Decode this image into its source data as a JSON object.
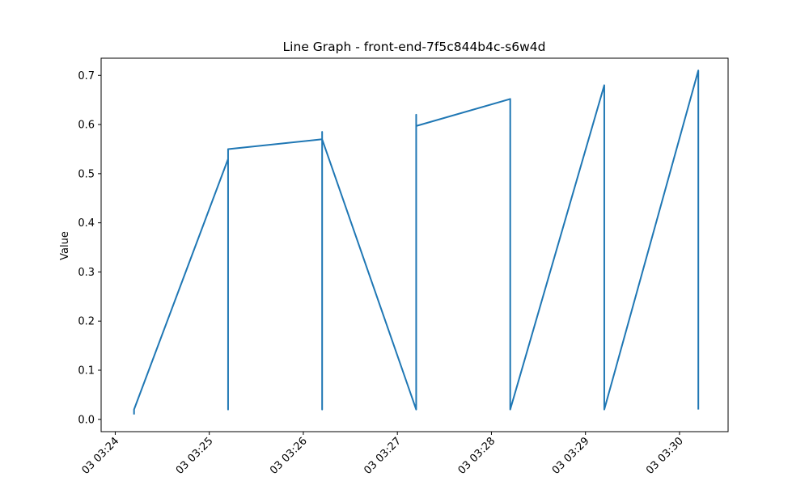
{
  "chart_data": {
    "type": "line",
    "title": "Line Graph - front-end-7f5c844b4c-s6w4d",
    "xlabel": "",
    "ylabel": "Value",
    "x_ticks": [
      "03 03:24",
      "03 03:25",
      "03 03:26",
      "03 03:27",
      "03 03:28",
      "03 03:29",
      "03 03:30"
    ],
    "y_ticks": [
      "0.0",
      "0.1",
      "0.2",
      "0.3",
      "0.4",
      "0.5",
      "0.6",
      "0.7"
    ],
    "ylim": [
      -0.025,
      0.735
    ],
    "xlim": [
      "03 03:23:51",
      "03 03:30:31"
    ],
    "grid": false,
    "colors": {
      "line": "#1f77b4",
      "axis": "#000000",
      "background": "#ffffff"
    },
    "series": [
      {
        "x": [
          "03 03:24:12",
          "03 03:24:12",
          "03 03:25:12",
          "03 03:25:12",
          "03 03:25:12",
          "03 03:25:12",
          "03 03:26:12",
          "03 03:26:12",
          "03 03:26:12",
          "03 03:26:12",
          "03 03:27:12",
          "03 03:27:12",
          "03 03:27:12",
          "03 03:27:12",
          "03 03:28:12",
          "03 03:28:12",
          "03 03:29:12",
          "03 03:29:12",
          "03 03:30:12",
          "03 03:30:12"
        ],
        "values": [
          0.01,
          0.02,
          0.53,
          0.02,
          0.55,
          0.55,
          0.57,
          0.02,
          0.585,
          0.57,
          0.02,
          0.62,
          0.6,
          0.597,
          0.652,
          0.02,
          0.68,
          0.02,
          0.71,
          0.02
        ]
      }
    ]
  }
}
